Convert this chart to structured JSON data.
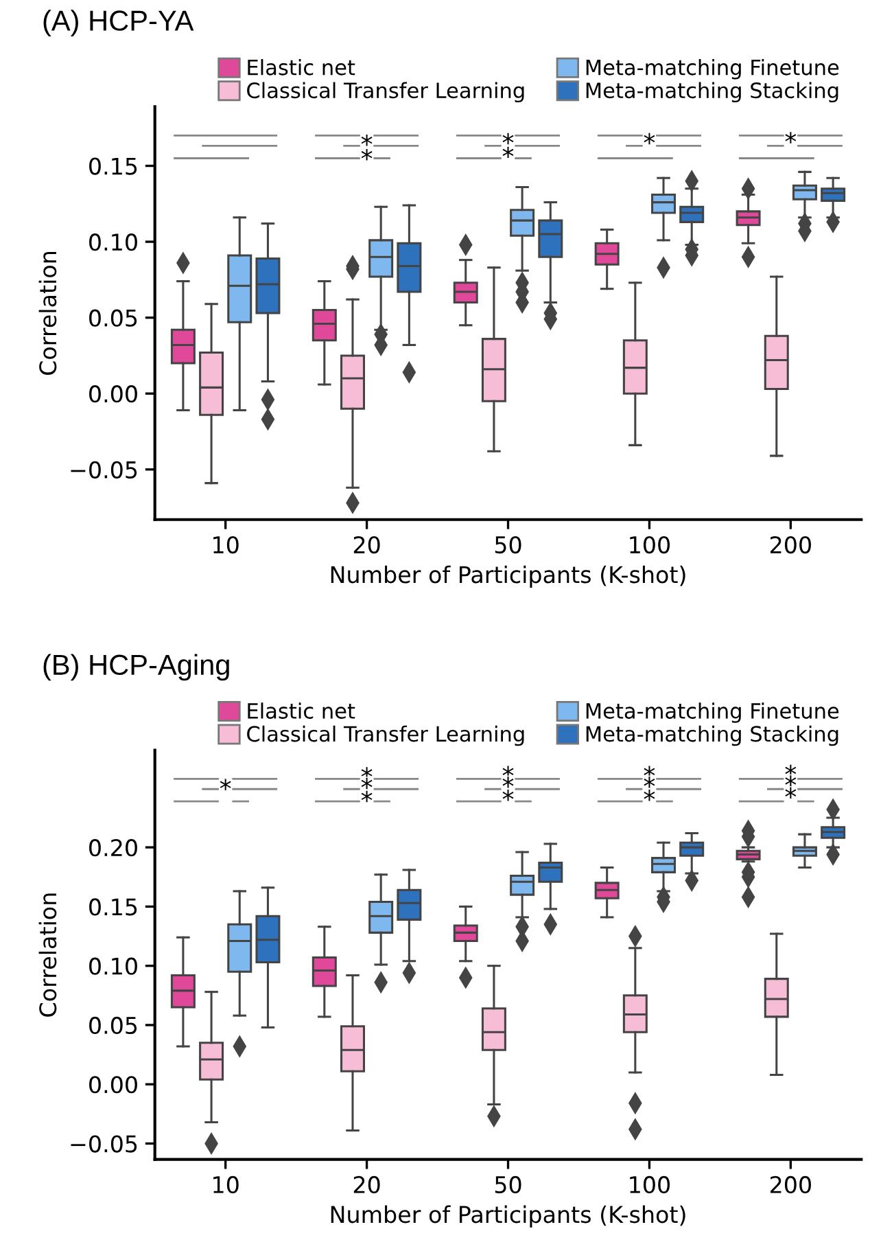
{
  "chart_data": [
    {
      "type": "box",
      "title": "(A) HCP-YA",
      "xlabel": "Number of Participants (K-shot)",
      "ylabel": "Correlation",
      "categories": [
        "10",
        "20",
        "50",
        "100",
        "200"
      ],
      "ylim": [
        -0.083,
        0.189
      ],
      "yticks": [
        {
          "value": -0.05,
          "label": "−0.05"
        },
        {
          "value": 0,
          "label": "0.00"
        },
        {
          "value": 0.05,
          "label": "0.05"
        },
        {
          "value": 0.1,
          "label": "0.10"
        },
        {
          "value": 0.15,
          "label": "0.15"
        }
      ],
      "legend": "top",
      "grid": false,
      "marker": "diamond",
      "series": [
        {
          "name": "Elastic net",
          "color": "#e0489a",
          "boxes": [
            {
              "low": -0.011,
              "q1": 0.02,
              "median": 0.032,
              "q3": 0.042,
              "high": 0.074,
              "outliers": [
                0.086
              ]
            },
            {
              "low": 0.006,
              "q1": 0.035,
              "median": 0.046,
              "q3": 0.055,
              "high": 0.074
            },
            {
              "low": 0.045,
              "q1": 0.06,
              "median": 0.067,
              "q3": 0.073,
              "high": 0.088,
              "outliers": [
                0.098
              ]
            },
            {
              "low": 0.069,
              "q1": 0.085,
              "median": 0.092,
              "q3": 0.099,
              "high": 0.108
            },
            {
              "low": 0.099,
              "q1": 0.111,
              "median": 0.116,
              "q3": 0.12,
              "high": 0.131,
              "outliers": [
                0.135,
                0.09
              ]
            }
          ]
        },
        {
          "name": "Classical Transfer Learning",
          "color": "#f7bcd6",
          "boxes": [
            {
              "low": -0.059,
              "q1": -0.014,
              "median": 0.004,
              "q3": 0.027,
              "high": 0.059
            },
            {
              "low": -0.062,
              "q1": -0.01,
              "median": 0.01,
              "q3": 0.025,
              "high": 0.062,
              "outliers": [
                0.084,
                0.082,
                -0.072
              ]
            },
            {
              "low": -0.038,
              "q1": -0.005,
              "median": 0.016,
              "q3": 0.036,
              "high": 0.083
            },
            {
              "low": -0.034,
              "q1": 0.0,
              "median": 0.017,
              "q3": 0.035,
              "high": 0.073
            },
            {
              "low": -0.041,
              "q1": 0.003,
              "median": 0.022,
              "q3": 0.038,
              "high": 0.077
            }
          ]
        },
        {
          "name": "Meta-matching Finetune",
          "color": "#7fb8ee",
          "boxes": [
            {
              "low": -0.011,
              "q1": 0.047,
              "median": 0.071,
              "q3": 0.091,
              "high": 0.116
            },
            {
              "low": 0.042,
              "q1": 0.077,
              "median": 0.09,
              "q3": 0.101,
              "high": 0.123,
              "outliers": [
                0.039,
                0.032
              ]
            },
            {
              "low": 0.081,
              "q1": 0.104,
              "median": 0.114,
              "q3": 0.121,
              "high": 0.136,
              "outliers": [
                0.073,
                0.067,
                0.06
              ]
            },
            {
              "low": 0.101,
              "q1": 0.119,
              "median": 0.126,
              "q3": 0.131,
              "high": 0.142,
              "outliers": [
                0.083
              ]
            },
            {
              "low": 0.116,
              "q1": 0.128,
              "median": 0.134,
              "q3": 0.137,
              "high": 0.146,
              "outliers": [
                0.112,
                0.107
              ]
            }
          ]
        },
        {
          "name": "Meta-matching Stacking",
          "color": "#2e72be",
          "boxes": [
            {
              "low": 0.008,
              "q1": 0.053,
              "median": 0.072,
              "q3": 0.089,
              "high": 0.112,
              "outliers": [
                -0.004,
                -0.017
              ]
            },
            {
              "low": 0.032,
              "q1": 0.067,
              "median": 0.084,
              "q3": 0.099,
              "high": 0.124,
              "outliers": [
                0.014
              ]
            },
            {
              "low": 0.06,
              "q1": 0.09,
              "median": 0.105,
              "q3": 0.114,
              "high": 0.126,
              "outliers": [
                0.053,
                0.049
              ]
            },
            {
              "low": 0.098,
              "q1": 0.113,
              "median": 0.119,
              "q3": 0.123,
              "high": 0.135,
              "outliers": [
                0.14,
                0.095,
                0.091
              ]
            },
            {
              "low": 0.116,
              "q1": 0.127,
              "median": 0.132,
              "q3": 0.135,
              "high": 0.142,
              "outliers": [
                0.113
              ]
            }
          ]
        }
      ],
      "annotations": [
        {
          "text": "*",
          "x": "20",
          "y": 0.163
        },
        {
          "text": "*",
          "x": "20",
          "y": 0.1535
        },
        {
          "text": "*",
          "x": "50",
          "y": 0.164
        },
        {
          "text": "*",
          "x": "50",
          "y": 0.155
        },
        {
          "text": "*",
          "x": "100",
          "y": 0.164
        },
        {
          "text": "*",
          "x": "200",
          "y": 0.1647
        }
      ]
    },
    {
      "type": "box",
      "title": "(B) HCP-Aging",
      "xlabel": "Number of Participants (K-shot)",
      "ylabel": "Correlation",
      "categories": [
        "10",
        "20",
        "50",
        "100",
        "200"
      ],
      "ylim": [
        -0.0634,
        0.282
      ],
      "yticks": [
        {
          "value": -0.05,
          "label": "−0.05"
        },
        {
          "value": 0,
          "label": "0.00"
        },
        {
          "value": 0.05,
          "label": "0.05"
        },
        {
          "value": 0.1,
          "label": "0.10"
        },
        {
          "value": 0.15,
          "label": "0.15"
        },
        {
          "value": 0.2,
          "label": "0.20"
        }
      ],
      "legend": "top",
      "grid": false,
      "marker": "diamond",
      "series": [
        {
          "name": "Elastic net",
          "color": "#e0489a",
          "boxes": [
            {
              "low": 0.032,
              "q1": 0.065,
              "median": 0.079,
              "q3": 0.092,
              "high": 0.124
            },
            {
              "low": 0.057,
              "q1": 0.083,
              "median": 0.096,
              "q3": 0.107,
              "high": 0.133
            },
            {
              "low": 0.104,
              "q1": 0.121,
              "median": 0.128,
              "q3": 0.134,
              "high": 0.15,
              "outliers": [
                0.09
              ]
            },
            {
              "low": 0.141,
              "q1": 0.157,
              "median": 0.164,
              "q3": 0.17,
              "high": 0.183
            },
            {
              "low": 0.188,
              "q1": 0.19,
              "median": 0.194,
              "q3": 0.197,
              "high": 0.2,
              "outliers": [
                0.214,
                0.209,
                0.179,
                0.175,
                0.158
              ]
            }
          ]
        },
        {
          "name": "Classical Transfer Learning",
          "color": "#f7bcd6",
          "boxes": [
            {
              "low": -0.032,
              "q1": 0.004,
              "median": 0.021,
              "q3": 0.035,
              "high": 0.078,
              "outliers": [
                -0.05
              ]
            },
            {
              "low": -0.039,
              "q1": 0.011,
              "median": 0.029,
              "q3": 0.049,
              "high": 0.092
            },
            {
              "low": -0.017,
              "q1": 0.029,
              "median": 0.044,
              "q3": 0.064,
              "high": 0.1,
              "outliers": [
                -0.027
              ]
            },
            {
              "low": 0.01,
              "q1": 0.044,
              "median": 0.059,
              "q3": 0.075,
              "high": 0.115,
              "outliers": [
                0.125,
                -0.016,
                -0.038
              ]
            },
            {
              "low": 0.008,
              "q1": 0.057,
              "median": 0.072,
              "q3": 0.089,
              "high": 0.127
            }
          ]
        },
        {
          "name": "Meta-matching Finetune",
          "color": "#7fb8ee",
          "boxes": [
            {
              "low": 0.058,
              "q1": 0.095,
              "median": 0.121,
              "q3": 0.135,
              "high": 0.163,
              "outliers": [
                0.032
              ]
            },
            {
              "low": 0.101,
              "q1": 0.128,
              "median": 0.142,
              "q3": 0.154,
              "high": 0.177,
              "outliers": [
                0.086
              ]
            },
            {
              "low": 0.141,
              "q1": 0.16,
              "median": 0.171,
              "q3": 0.176,
              "high": 0.196,
              "outliers": [
                0.133,
                0.121
              ]
            },
            {
              "low": 0.163,
              "q1": 0.179,
              "median": 0.186,
              "q3": 0.191,
              "high": 0.204,
              "outliers": [
                0.158,
                0.154
              ]
            },
            {
              "low": 0.183,
              "q1": 0.193,
              "median": 0.197,
              "q3": 0.2,
              "high": 0.211
            }
          ]
        },
        {
          "name": "Meta-matching Stacking",
          "color": "#2e72be",
          "boxes": [
            {
              "low": 0.048,
              "q1": 0.103,
              "median": 0.122,
              "q3": 0.142,
              "high": 0.166
            },
            {
              "low": 0.104,
              "q1": 0.139,
              "median": 0.153,
              "q3": 0.164,
              "high": 0.181,
              "outliers": [
                0.094
              ]
            },
            {
              "low": 0.148,
              "q1": 0.171,
              "median": 0.183,
              "q3": 0.187,
              "high": 0.203,
              "outliers": [
                0.135
              ]
            },
            {
              "low": 0.178,
              "q1": 0.193,
              "median": 0.2,
              "q3": 0.204,
              "high": 0.212,
              "outliers": [
                0.172
              ]
            },
            {
              "low": 0.2,
              "q1": 0.208,
              "median": 0.213,
              "q3": 0.217,
              "high": 0.225,
              "outliers": [
                0.232,
                0.194
              ]
            }
          ]
        }
      ],
      "annotations": [
        {
          "text": "*",
          "x": "10",
          "y": 0.248
        },
        {
          "text": "*",
          "x": "20",
          "y": 0.258
        },
        {
          "text": "*",
          "x": "20",
          "y": 0.249
        },
        {
          "text": "*",
          "x": "20",
          "y": 0.238
        },
        {
          "text": "*",
          "x": "50",
          "y": 0.259
        },
        {
          "text": "*",
          "x": "50",
          "y": 0.25
        },
        {
          "text": "*",
          "x": "50",
          "y": 0.239
        },
        {
          "text": "*",
          "x": "100",
          "y": 0.259
        },
        {
          "text": "*",
          "x": "100",
          "y": 0.25
        },
        {
          "text": "*",
          "x": "100",
          "y": 0.239
        },
        {
          "text": "*",
          "x": "200",
          "y": 0.26
        },
        {
          "text": "*",
          "x": "200",
          "y": 0.251
        },
        {
          "text": "*",
          "x": "200",
          "y": 0.241
        }
      ]
    }
  ]
}
